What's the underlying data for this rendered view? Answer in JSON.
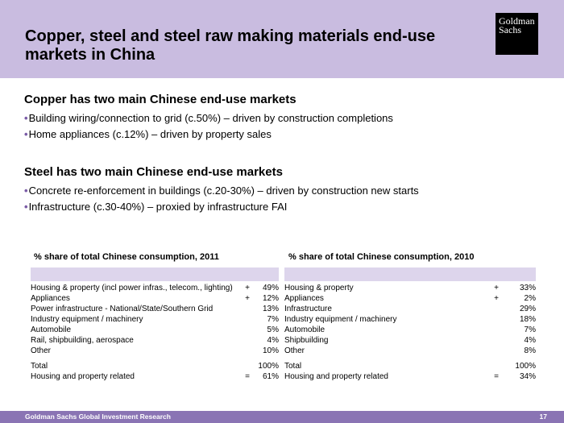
{
  "header": {
    "title": "Copper, steel and steel raw making materials end-use markets in China",
    "logo_line1": "Goldman",
    "logo_line2": "Sachs"
  },
  "copper": {
    "heading": "Copper has two main Chinese end-use markets",
    "bullets": [
      "Building wiring/connection to grid (c.50%) – driven by construction completions",
      "Home appliances (c.12%) – driven by property sales"
    ]
  },
  "steel": {
    "heading": "Steel has two main Chinese end-use markets",
    "bullets": [
      "Concrete re-enforcement in buildings (c.20-30%) – driven by construction new starts",
      "Infrastructure (c.30-40%) – proxied by infrastructure FAI"
    ]
  },
  "table_2011": {
    "title": "% share of total Chinese consumption, 2011",
    "rows": [
      {
        "label": "Housing & property (incl power infras., telecom., lighting)",
        "op": "+",
        "value": "49%"
      },
      {
        "label": "Appliances",
        "op": "+",
        "value": "12%"
      },
      {
        "label": "Power infrastructure - National/State/Southern Grid",
        "op": "",
        "value": "13%"
      },
      {
        "label": "Industry equipment / machinery",
        "op": "",
        "value": "7%"
      },
      {
        "label": "Automobile",
        "op": "",
        "value": "5%"
      },
      {
        "label": "Rail, shipbuilding, aerospace",
        "op": "",
        "value": "4%"
      },
      {
        "label": "Other",
        "op": "",
        "value": "10%"
      }
    ],
    "total": {
      "label": "Total",
      "op": "",
      "value": "100%"
    },
    "related": {
      "label": "Housing and property related",
      "op": "=",
      "value": "61%"
    }
  },
  "table_2010": {
    "title": "% share of total Chinese consumption, 2010",
    "rows": [
      {
        "label": "Housing & property",
        "op": "+",
        "value": "33%"
      },
      {
        "label": "Appliances",
        "op": "+",
        "value": "2%"
      },
      {
        "label": "Infrastructure",
        "op": "",
        "value": "29%"
      },
      {
        "label": "Industry equipment / machinery",
        "op": "",
        "value": "18%"
      },
      {
        "label": "Automobile",
        "op": "",
        "value": "7%"
      },
      {
        "label": "Shipbuilding",
        "op": "",
        "value": "4%"
      },
      {
        "label": "Other",
        "op": "",
        "value": "8%"
      }
    ],
    "total": {
      "label": "Total",
      "op": "",
      "value": "100%"
    },
    "related": {
      "label": "Housing and property related",
      "op": "=",
      "value": "34%"
    }
  },
  "footer": {
    "source": "Goldman Sachs Global Investment Research",
    "page": "17"
  },
  "colors": {
    "header_band": "#c9bce0",
    "table_band": "#ddd5ec",
    "footer_band": "#8a74b4",
    "bullet": "#7a5ba6"
  }
}
